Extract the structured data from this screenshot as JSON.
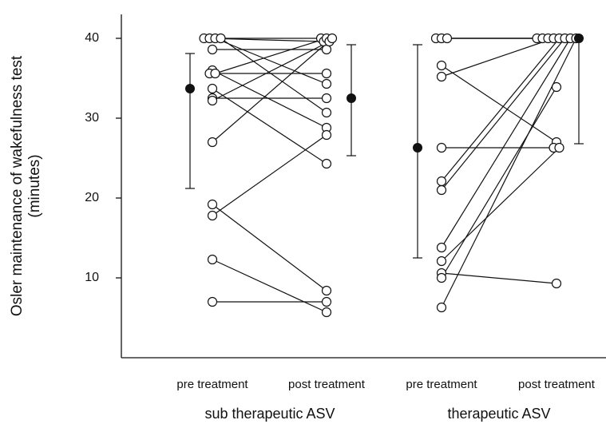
{
  "chart_data": {
    "type": "paired-dot",
    "y_label": [
      "Osler maintenance of wakefulness test",
      "(minutes)"
    ],
    "ylim": [
      0,
      43
    ],
    "yticks": [
      10,
      20,
      30,
      40
    ],
    "groups": [
      {
        "name": "sub therapeutic ASV",
        "categories": [
          "pre treatment",
          "post treatment"
        ],
        "pre": [
          40,
          40,
          40,
          40,
          38.6,
          36,
          35.6,
          35.6,
          33.7,
          32.5,
          32.2,
          27,
          19.2,
          17.8,
          12.3,
          7
        ],
        "post": [
          40,
          39.6,
          34.3,
          30.7,
          38.6,
          28.8,
          35.6,
          40,
          24.3,
          32.5,
          39.6,
          40,
          8.4,
          27.9,
          5.7,
          7
        ],
        "pre_mean": {
          "mean": 33.7,
          "low": 21.2,
          "high": 38.1
        },
        "post_mean": {
          "mean": 32.5,
          "low": 25.3,
          "high": 39.2
        }
      },
      {
        "name": "therapeutic ASV",
        "categories": [
          "pre treatment",
          "post treatment"
        ],
        "pre": [
          40,
          40,
          40,
          36.6,
          35.2,
          26.3,
          22.1,
          21,
          13.8,
          12.1,
          10.6,
          10,
          6.3
        ],
        "post": [
          40,
          40,
          40,
          27,
          40,
          26.3,
          40,
          40,
          40,
          26.3,
          9.3,
          33.9,
          40
        ],
        "pre_mean": {
          "mean": 26.3,
          "low": 12.5,
          "high": 39.2
        },
        "post_mean": {
          "mean": 40,
          "low": 26.8,
          "high": 40
        }
      }
    ]
  }
}
